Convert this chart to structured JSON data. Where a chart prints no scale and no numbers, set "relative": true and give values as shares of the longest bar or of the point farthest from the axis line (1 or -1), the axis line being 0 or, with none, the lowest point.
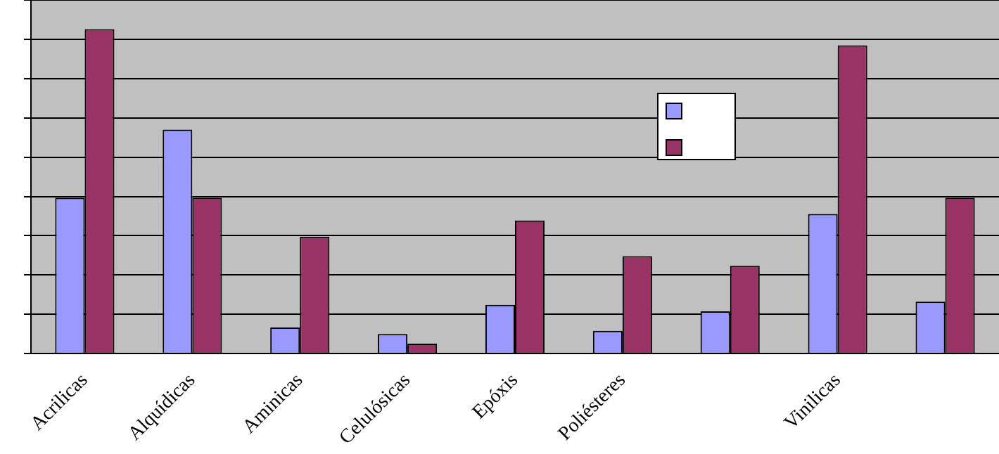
{
  "chart_data": {
    "type": "bar",
    "relative": true,
    "grid": "y",
    "categories": [
      "Acrilicas",
      "Alquídicas",
      "Aminicas",
      "Celulósicas",
      "Epóxis",
      "Poliésteres",
      null,
      "Vinilicas",
      null
    ],
    "series": [
      {
        "color": "#9999ff",
        "values": [
          0.48,
          0.69,
          0.08,
          0.06,
          0.15,
          0.07,
          0.13,
          0.43,
          0.16
        ]
      },
      {
        "color": "#993366",
        "values": [
          1.0,
          0.48,
          0.36,
          0.03,
          0.41,
          0.3,
          0.27,
          0.95,
          0.48
        ]
      }
    ]
  }
}
